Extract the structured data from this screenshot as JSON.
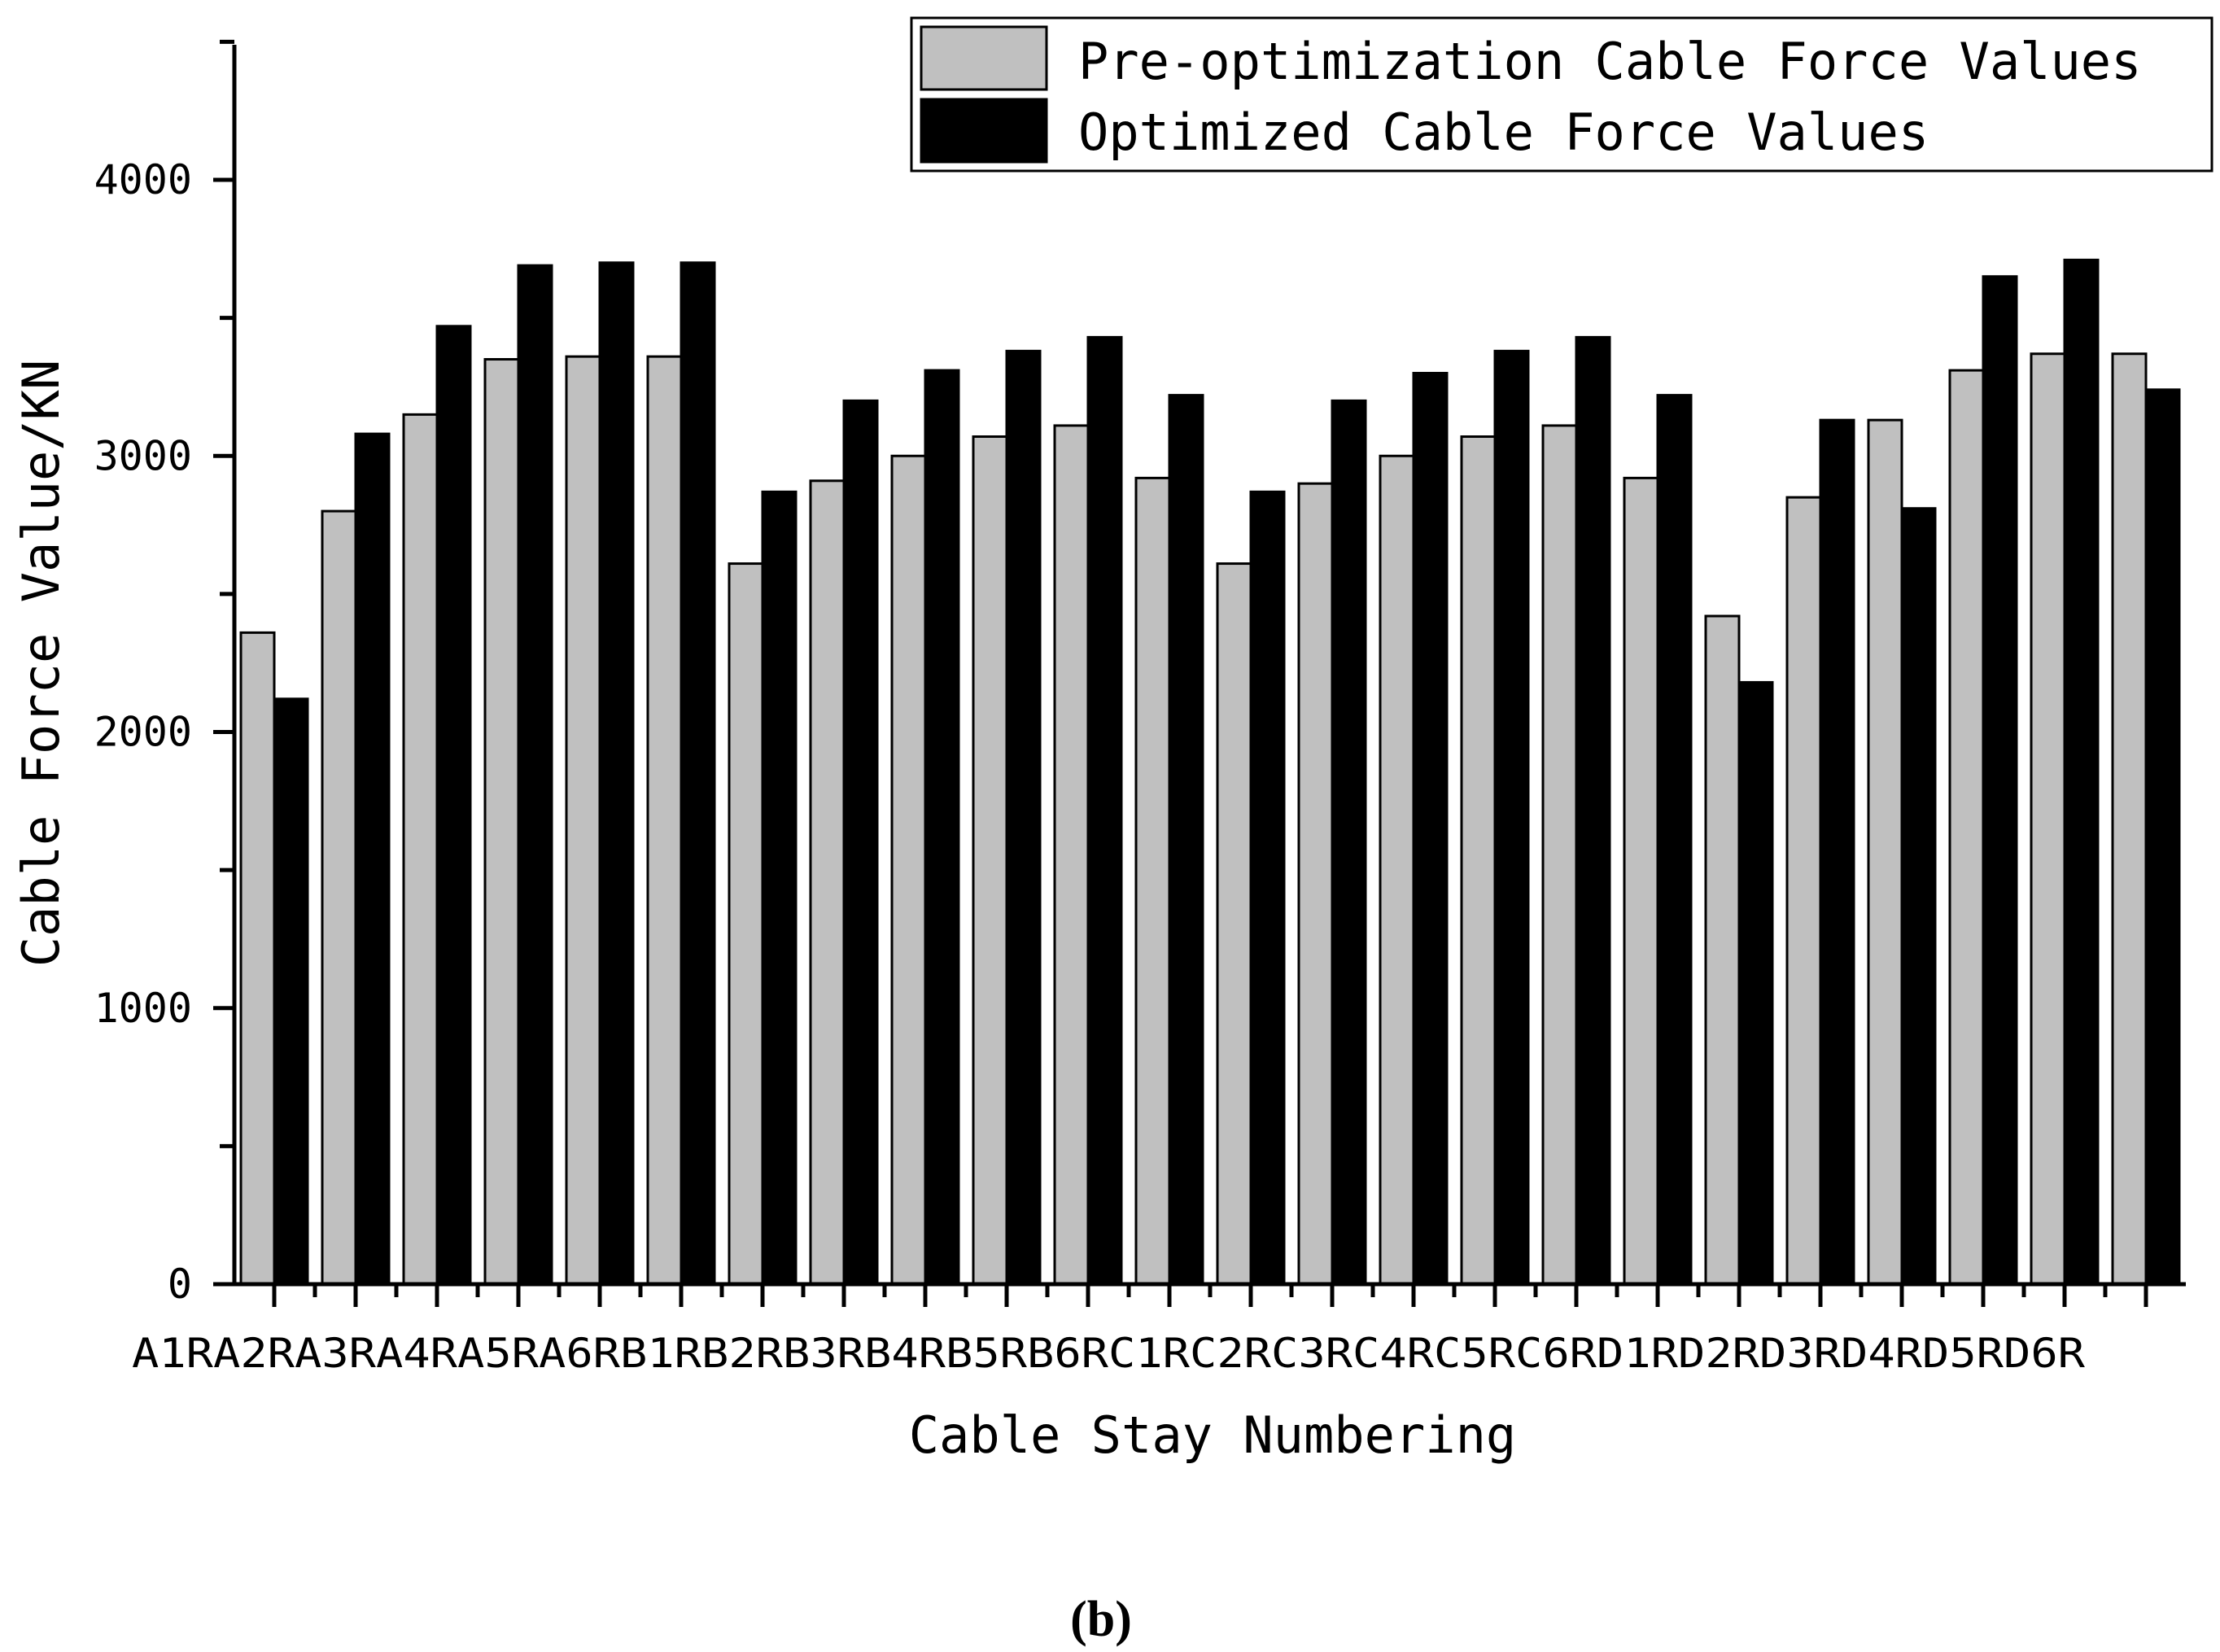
{
  "chart_data": {
    "type": "bar",
    "title": "",
    "xlabel": "Cable Stay Numbering",
    "ylabel": "Cable Force Value/KN",
    "ylim": [
      0,
      4500
    ],
    "yticks": [
      0,
      1000,
      2000,
      3000,
      4000
    ],
    "grid": false,
    "legend_position": "top-right",
    "categories": [
      "A1R",
      "A2R",
      "A3R",
      "A4R",
      "A5R",
      "A6R",
      "B1R",
      "B2R",
      "B3R",
      "B4R",
      "B5R",
      "B6R",
      "C1R",
      "C2R",
      "C3R",
      "C4R",
      "C5R",
      "C6R",
      "D1R",
      "D2R",
      "D3R",
      "D4R",
      "D5R",
      "D6R"
    ],
    "tick_label_text": "A1RA2RA3RA4RA5RA6RB1RB2RB3RB4RB5RB6RC1RC2RC3RC4RC5RC6RD1RD2RD3RD4RD5RD6R",
    "series": [
      {
        "name": "Pre-optimization Cable Force Values",
        "color": "#c0c0c0",
        "values": [
          2360,
          2800,
          3150,
          3350,
          3360,
          3360,
          2610,
          2910,
          3000,
          3070,
          3110,
          2920,
          2610,
          2900,
          3000,
          3070,
          3110,
          2920,
          2420,
          2850,
          3130,
          3310,
          3370,
          3370
        ]
      },
      {
        "name": "Optimized Cable Force Values",
        "color": "#000000",
        "values": [
          2120,
          3080,
          3470,
          3690,
          3700,
          3700,
          2870,
          3200,
          3310,
          3380,
          3430,
          3220,
          2870,
          3200,
          3300,
          3380,
          3430,
          3220,
          2180,
          3130,
          2810,
          3650,
          3710,
          3240
        ]
      }
    ]
  },
  "panel_label": "(b)"
}
